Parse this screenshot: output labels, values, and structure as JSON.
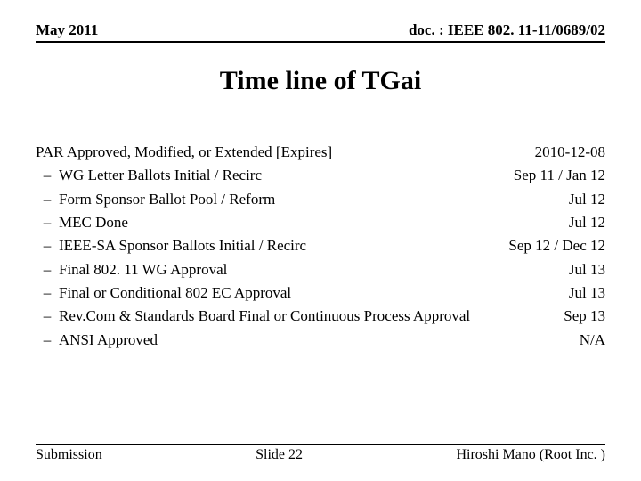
{
  "header": {
    "left": "May 2011",
    "right": "doc. : IEEE 802. 11-11/0689/02"
  },
  "title": "Time line of TGai",
  "topline": {
    "label": "PAR Approved, Modified, or Extended [Expires]",
    "date": "2010-12-08"
  },
  "items": [
    {
      "label": "WG Letter Ballots Initial / Recirc",
      "date": "Sep 11 / Jan 12"
    },
    {
      "label": "Form Sponsor Ballot Pool / Reform",
      "date": "Jul 12"
    },
    {
      "label": "MEC Done",
      "date": "Jul 12"
    },
    {
      "label": "IEEE-SA Sponsor Ballots Initial / Recirc",
      "date": "Sep 12 / Dec 12"
    },
    {
      "label": "Final 802. 11 WG Approval",
      "date": "Jul 13"
    },
    {
      "label": "Final or Conditional 802 EC Approval",
      "date": "Jul 13"
    },
    {
      "label": "Rev.Com & Standards Board Final or Continuous Process Approval",
      "date": "Sep 13"
    },
    {
      "label": "ANSI Approved",
      "date": "N/A"
    }
  ],
  "footer": {
    "left": "Submission",
    "center": "Slide 22",
    "right": "Hiroshi Mano (Root Inc. )"
  },
  "style": {
    "font_family": "Times New Roman",
    "title_fontsize": 30,
    "body_fontsize": 17,
    "footer_fontsize": 16,
    "text_color": "#000000",
    "background_color": "#ffffff",
    "rule_color": "#000000",
    "bullet_glyph": "–"
  }
}
